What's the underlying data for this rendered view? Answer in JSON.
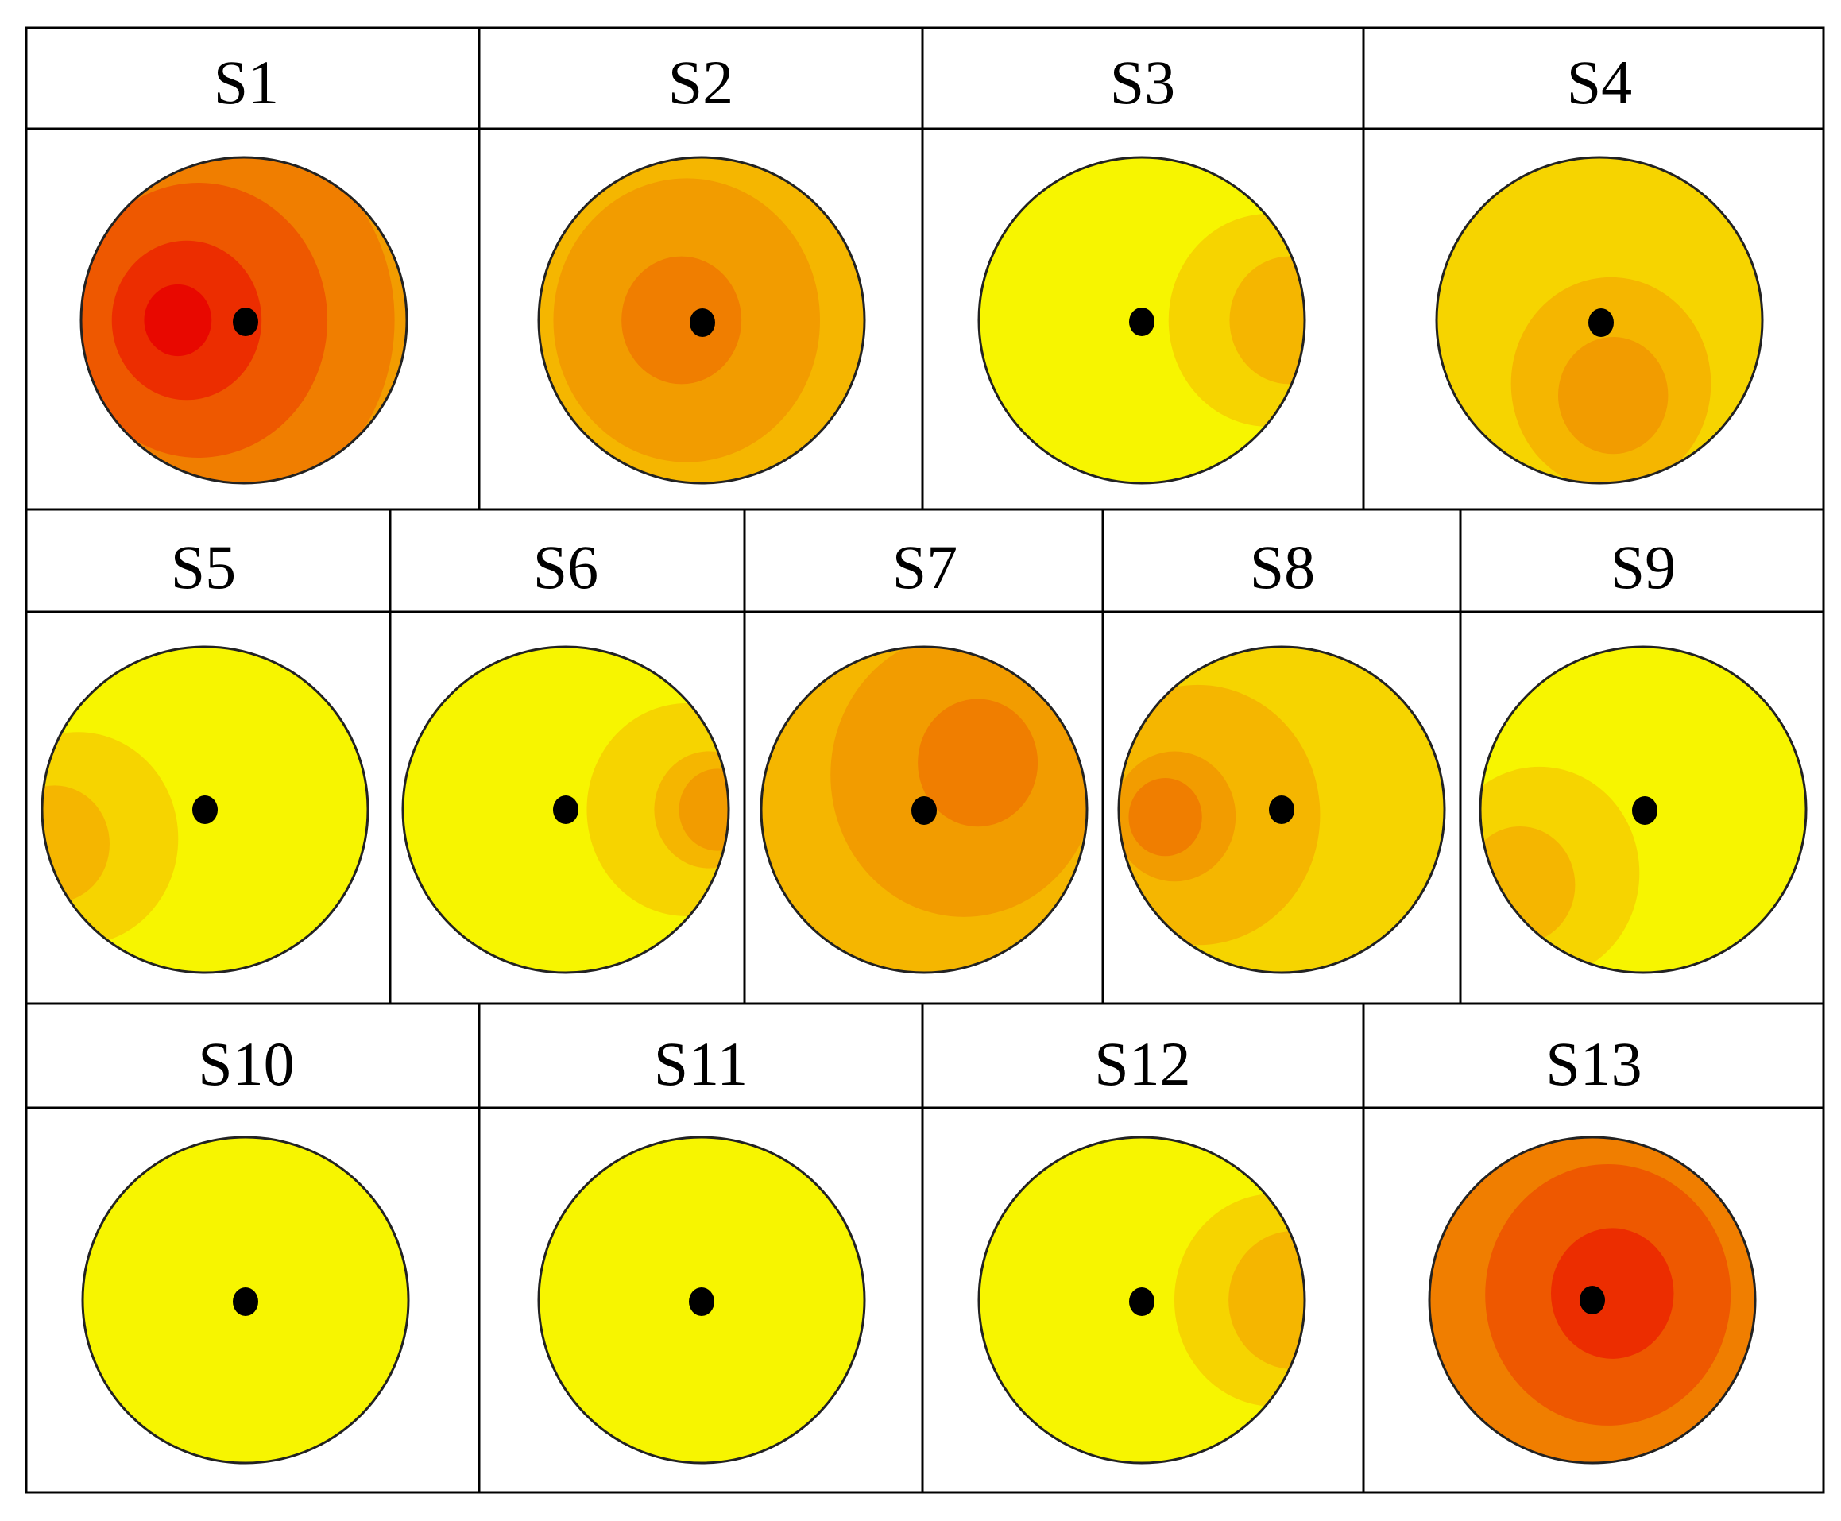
{
  "colors": {
    "c0": "#f7f500",
    "c1": "#f6d400",
    "c2": "#f5b600",
    "c3": "#f29c00",
    "c4": "#f07e00",
    "c5": "#ee5800",
    "c6": "#ec2d00",
    "c7": "#e80800",
    "grid": "#000000",
    "outline": "#222222",
    "marker": "#000000"
  },
  "panels": [
    {
      "label": "S1",
      "colors": [
        "c3",
        "c4",
        "c5",
        "c6",
        "c7"
      ],
      "steps": [
        0.17,
        0.3,
        0.42,
        0.55,
        0.62
      ]
    },
    {
      "label": "S2",
      "colors": [
        "c2",
        "c3",
        "c4"
      ],
      "steps": [
        0.4,
        0.55,
        0.25
      ]
    },
    {
      "label": "S3",
      "colors": [
        "c0",
        "c1",
        "c2"
      ],
      "steps": [
        0.55,
        0.4,
        0.2
      ]
    },
    {
      "label": "S4",
      "colors": [
        "c1",
        "c2",
        "c3"
      ],
      "steps": [
        0.55,
        0.45,
        0.3
      ]
    },
    {
      "label": "S5",
      "colors": [
        "c0",
        "c1",
        "c2"
      ],
      "steps": [
        0.55,
        0.45,
        0.2
      ]
    },
    {
      "label": "S6",
      "colors": [
        "c0",
        "c1",
        "c2",
        "c3"
      ],
      "steps": [
        0.55,
        0.45,
        0.3,
        0.15
      ]
    },
    {
      "label": "S7",
      "colors": [
        "c2",
        "c3",
        "c4"
      ],
      "steps": [
        0.4,
        0.55,
        0.3
      ]
    },
    {
      "label": "S8",
      "colors": [
        "c1",
        "c2",
        "c3",
        "c4"
      ],
      "steps": [
        0.45,
        0.5,
        0.4,
        0.25
      ]
    },
    {
      "label": "S9",
      "colors": [
        "c0",
        "c1",
        "c2"
      ],
      "steps": [
        0.55,
        0.45,
        0.2
      ]
    },
    {
      "label": "S10",
      "colors": [
        "c0"
      ],
      "steps": [
        0
      ]
    },
    {
      "label": "S11",
      "colors": [
        "c0"
      ],
      "steps": [
        0
      ]
    },
    {
      "label": "S12",
      "colors": [
        "c0",
        "c1",
        "c2"
      ],
      "steps": [
        0.55,
        0.35,
        0.2
      ]
    },
    {
      "label": "S13",
      "colors": [
        "c3",
        "c4",
        "c5",
        "c6"
      ],
      "steps": [
        0.15,
        0.35,
        0.5,
        0.65
      ]
    }
  ]
}
